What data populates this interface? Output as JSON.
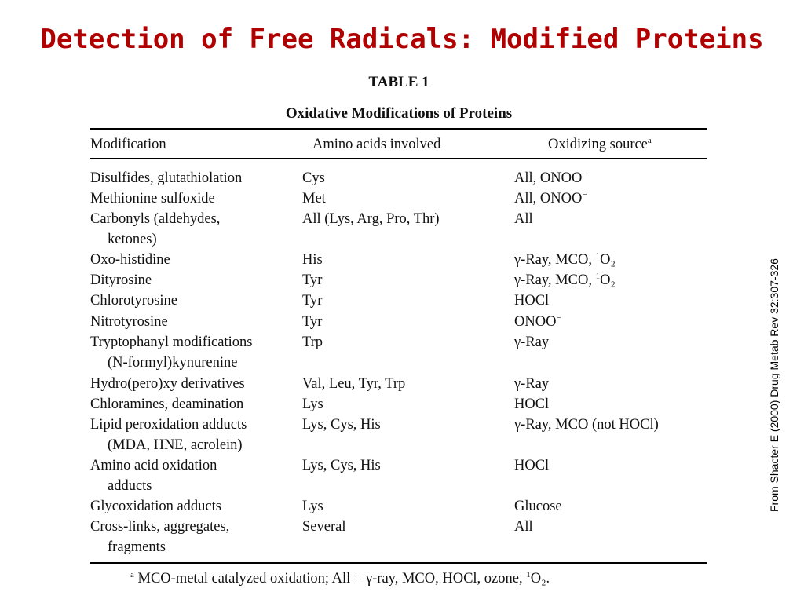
{
  "title": "Detection of Free Radicals: Modified Proteins",
  "table": {
    "label": "TABLE 1",
    "caption": "Oxidative Modifications of Proteins",
    "headers": [
      "Modification",
      "Amino acids involved",
      "Oxidizing source"
    ],
    "header_footnote_mark": "a",
    "rows": [
      {
        "mod": "Disulfides, glutathiolation",
        "mod2": "",
        "amino": "Cys",
        "src": "All, ONOO",
        "sup": "−",
        "sup_pre": "",
        "tail": ""
      },
      {
        "mod": "Methionine sulfoxide",
        "mod2": "",
        "amino": "Met",
        "src": "All, ONOO",
        "sup": "−",
        "sup_pre": "",
        "tail": ""
      },
      {
        "mod": "Carbonyls (aldehydes,",
        "mod2": "ketones)",
        "amino": "All (Lys, Arg, Pro, Thr)",
        "src": "All",
        "sup": "",
        "sup_pre": "",
        "tail": ""
      },
      {
        "mod": "Oxo-histidine",
        "mod2": "",
        "amino": "His",
        "src": "γ-Ray, MCO, ",
        "sup": "1",
        "sup_pre": "",
        "tail": "O₂"
      },
      {
        "mod": "Dityrosine",
        "mod2": "",
        "amino": "Tyr",
        "src": "γ-Ray, MCO, ",
        "sup": "1",
        "sup_pre": "",
        "tail": "O₂"
      },
      {
        "mod": "Chlorotyrosine",
        "mod2": "",
        "amino": "Tyr",
        "src": "HOCl",
        "sup": "",
        "sup_pre": "",
        "tail": ""
      },
      {
        "mod": "Nitrotyrosine",
        "mod2": "",
        "amino": "Tyr",
        "src": "ONOO",
        "sup": "−",
        "sup_pre": "",
        "tail": ""
      },
      {
        "mod": "Tryptophanyl modifications",
        "mod2": "(N-formyl)kynurenine",
        "amino": "Trp",
        "src": "γ-Ray",
        "sup": "",
        "sup_pre": "",
        "tail": ""
      },
      {
        "mod": "Hydro(pero)xy derivatives",
        "mod2": "",
        "amino": "Val, Leu, Tyr, Trp",
        "src": "γ-Ray",
        "sup": "",
        "sup_pre": "",
        "tail": ""
      },
      {
        "mod": "Chloramines, deamination",
        "mod2": "",
        "amino": "Lys",
        "src": "HOCl",
        "sup": "",
        "sup_pre": "",
        "tail": ""
      },
      {
        "mod": "Lipid peroxidation adducts",
        "mod2": "(MDA, HNE, acrolein)",
        "amino": "Lys, Cys, His",
        "src": "γ-Ray, MCO (not HOCl)",
        "sup": "",
        "sup_pre": "",
        "tail": ""
      },
      {
        "mod": "Amino acid oxidation",
        "mod2": "adducts",
        "amino": "Lys, Cys, His",
        "src": "HOCl",
        "sup": "",
        "sup_pre": "",
        "tail": ""
      },
      {
        "mod": "Glycoxidation adducts",
        "mod2": "",
        "amino": "Lys",
        "src": "Glucose",
        "sup": "",
        "sup_pre": "",
        "tail": ""
      },
      {
        "mod": "Cross-links, aggregates,",
        "mod2": "fragments",
        "amino": "Several",
        "src": "All",
        "sup": "",
        "sup_pre": "",
        "tail": ""
      }
    ],
    "footnote": {
      "mark": "a",
      "text": " MCO-metal catalyzed oxidation; All = γ-ray, MCO, HOCl, ozone, ",
      "sup": "1",
      "tail": "O₂."
    }
  },
  "side_credit": "From Shacter E (2000) Drug Metab Rev 32:307-326",
  "colors": {
    "title": "#b00000"
  }
}
